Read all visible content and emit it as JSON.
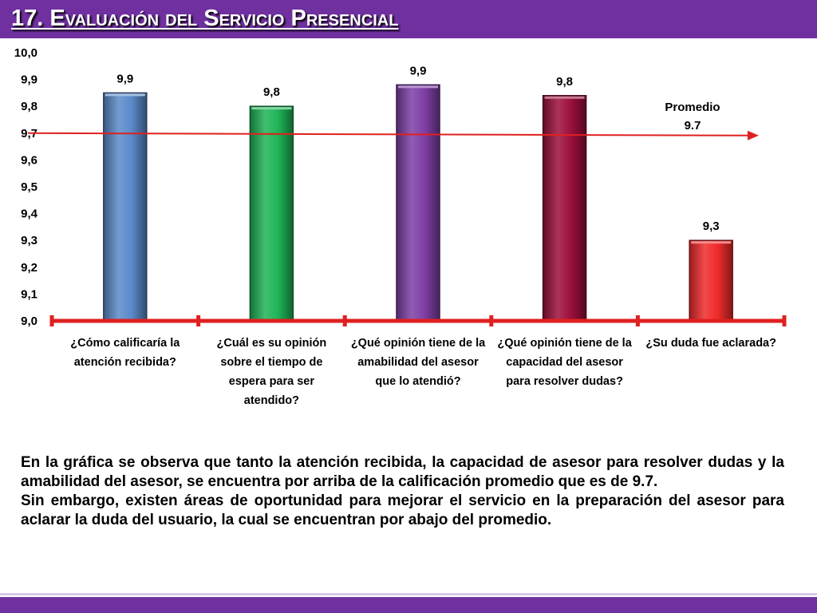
{
  "title": "17. Evaluación del Servicio Presencial",
  "chart_data": {
    "type": "bar",
    "categories": [
      "¿Cómo calificaría la atención recibida?",
      "¿Cuál es su opinión sobre el tiempo de espera para ser atendido?",
      "¿Qué opinión tiene de la amabilidad del asesor que lo atendió?",
      "¿Qué opinión tiene de la capacidad del asesor para resolver dudas?",
      "¿Su duda fue aclarada?"
    ],
    "values": [
      9.85,
      9.8,
      9.88,
      9.84,
      9.3
    ],
    "data_labels": [
      "9,9",
      "9,8",
      "9,9",
      "9,8",
      "9,3"
    ],
    "colors": [
      "#5b8ac9",
      "#1fb457",
      "#7e3fa6",
      "#9c0f3c",
      "#f02b2b"
    ],
    "ylim": [
      9.0,
      10.0
    ],
    "yticks": [
      "9,0",
      "9,1",
      "9,2",
      "9,3",
      "9,4",
      "9,5",
      "9,6",
      "9,7",
      "9,8",
      "9,9",
      "10,0"
    ],
    "average": {
      "value": 9.7,
      "label_line1": "Promedio",
      "label_line2": "9.7",
      "color": "#e02020"
    },
    "axis_color": "#e02020",
    "grid": false,
    "legend": "none"
  },
  "description": {
    "paragraph1": "En la gráfica se observa que tanto la atención recibida, la capacidad de asesor para resolver dudas y la amabilidad del asesor, se encuentra por arriba de la calificación promedio que es de 9.7.",
    "paragraph2": "Sin embargo, existen áreas de oportunidad para mejorar el servicio en la preparación del asesor para aclarar la duda del usuario, la cual se encuentran por abajo del promedio."
  }
}
